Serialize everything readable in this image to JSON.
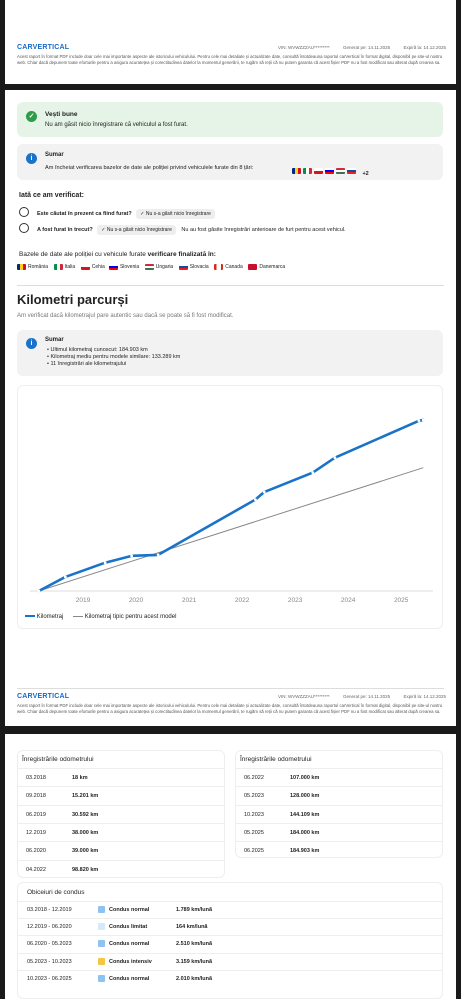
{
  "header": {
    "logo": "CARVERTICAL",
    "vin_label": "VIN: WVWZZZAU*********",
    "generated": "Generat pe: 14.11.2025",
    "expires": "Expiră la: 14.12.2025",
    "disclaimer": "Acest raport în format PDF include doar cele mai importante aspecte ale istoricului vehiculului. Pentru cele mai detaliate și actualizate date, consultă întotdeauna raportul carVertical în format digital, disponibil pe site-ul nostru web. Chiar dacă depunem toate eforturile pentru a asigura acuratețea și corectitudinea datelor la momentul generării, te rugăm să reții că nu putem garanta că acest fișier PDF nu a fost modificat sau alterat după crearea sa."
  },
  "theft": {
    "good_news_title": "Vești bune",
    "good_news_text": "Nu am găsit nicio înregistrare că vehiculul a fost furat.",
    "summary_title": "Sumar",
    "summary_text": "Am încheiat verificarea bazelor de date ale poliției privind vehiculele furate din 8 țări:",
    "summary_extra": "+2",
    "checked_title": "Iată ce am verificat:",
    "q1": "Este căutat în prezent ca fiind furat?",
    "q1_pill": "Nu s-a găsit nicio înregistrare",
    "q2": "A fost furat în trecut?",
    "q2_pill": "Nu s-a găsit nicio înregistrare",
    "q2_note": "Nu au fost găsite înregistrări anterioare de furt pentru acest vehicul.",
    "db_title_prefix": "Bazele de date ale poliției cu vehicule furate",
    "db_title_bold": "verificare finalizată în:",
    "countries": [
      "România",
      "Italia",
      "Cehia",
      "Slovenia",
      "Ungaria",
      "Slovacia",
      "Canada",
      "Danemarca"
    ]
  },
  "mileage": {
    "title": "Kilometri parcurși",
    "subtitle": "Am verificat dacă kilometrajul pare autentic sau dacă se poate să fi fost modificat.",
    "summary_title": "Sumar",
    "bullets": [
      "Ultimul kilometraj cunoscut: 184.903 km",
      "Kilometraj mediu pentru modele similare: 133.289 km",
      "11 înregistrări ale kilometrajului"
    ],
    "legend_actual": "Kilometraj",
    "legend_typical": "Kilometraj tipic pentru acest model"
  },
  "chart_data": {
    "type": "line",
    "x_ticks": [
      "2019",
      "2020",
      "2021",
      "2022",
      "2023",
      "2024",
      "2025"
    ],
    "series": [
      {
        "name": "Kilometraj",
        "color": "#1a73c8",
        "points": [
          [
            "03.2018",
            18
          ],
          [
            "09.2018",
            15201
          ],
          [
            "06.2019",
            30592
          ],
          [
            "12.2019",
            38000
          ],
          [
            "06.2020",
            39000
          ],
          [
            "04.2022",
            98820
          ],
          [
            "06.2022",
            107000
          ],
          [
            "05.2023",
            128000
          ],
          [
            "10.2023",
            144109
          ],
          [
            "05.2025",
            184000
          ],
          [
            "06.2025",
            184903
          ]
        ]
      },
      {
        "name": "Kilometraj tipic pentru acest model",
        "color": "#888888",
        "points": [
          [
            "03.2018",
            0
          ],
          [
            "06.2025",
            133289
          ]
        ]
      }
    ]
  },
  "odometer": {
    "title": "Înregistrările odometrului",
    "left": [
      {
        "date": "03.2018",
        "km": "18 km"
      },
      {
        "date": "09.2018",
        "km": "15.201 km"
      },
      {
        "date": "06.2019",
        "km": "30.592 km"
      },
      {
        "date": "12.2019",
        "km": "38.000 km"
      },
      {
        "date": "06.2020",
        "km": "39.000 km"
      },
      {
        "date": "04.2022",
        "km": "98.820 km"
      }
    ],
    "right": [
      {
        "date": "06.2022",
        "km": "107.000 km"
      },
      {
        "date": "05.2023",
        "km": "128.000 km"
      },
      {
        "date": "10.2023",
        "km": "144.109 km"
      },
      {
        "date": "05.2025",
        "km": "184.000 km"
      },
      {
        "date": "06.2025",
        "km": "184.903 km"
      }
    ]
  },
  "driving": {
    "title": "Obiceiuri de condus",
    "rows": [
      {
        "period": "03.2018 - 12.2019",
        "label": "Condus normal",
        "value": "1.789 km/lună",
        "color": "#8ec2f0"
      },
      {
        "period": "12.2019 - 06.2020",
        "label": "Condus limitat",
        "value": "164 km/lună",
        "color": "#d6e9f8"
      },
      {
        "period": "06.2020 - 05.2023",
        "label": "Condus normal",
        "value": "2.510 km/lună",
        "color": "#8ec2f0"
      },
      {
        "period": "05.2023 - 10.2023",
        "label": "Condus intensiv",
        "value": "3.159 km/lună",
        "color": "#f2c744"
      },
      {
        "period": "10.2023 - 06.2025",
        "label": "Condus normal",
        "value": "2.010 km/lună",
        "color": "#8ec2f0"
      }
    ]
  }
}
